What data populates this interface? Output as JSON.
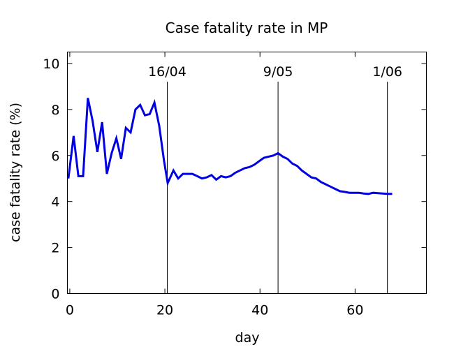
{
  "chart_data": {
    "type": "line",
    "title": "Case fatality rate in MP",
    "xlabel": "day",
    "ylabel": "case fatality rate (%)",
    "xlim": [
      -0.5,
      75
    ],
    "ylim": [
      0,
      10.5
    ],
    "xticks": [
      "0",
      "20",
      "40",
      "60"
    ],
    "yticks": [
      "0",
      "2",
      "4",
      "6",
      "8",
      "10"
    ],
    "grid": false,
    "line_color": "#0000e0",
    "vlines": [
      {
        "x": 20.5,
        "label": "16/04"
      },
      {
        "x": 43.8,
        "label": "9/05"
      },
      {
        "x": 66.8,
        "label": "1/06"
      }
    ],
    "series": [
      {
        "x": [
          -0.3,
          0.8,
          1.8,
          2.8,
          3.8,
          4.8,
          5.8,
          6.8,
          7.8,
          8.8,
          9.8,
          10.8,
          11.8,
          12.8,
          13.8,
          14.8,
          15.8,
          16.8,
          17.8,
          18.8,
          19.8,
          20.6,
          21.8,
          22.8,
          23.8,
          24.8,
          25.8,
          26.8,
          27.8,
          28.8,
          29.8,
          30.8,
          31.8,
          32.8,
          33.8,
          34.8,
          35.8,
          36.8,
          37.8,
          38.8,
          39.8,
          40.8,
          41.8,
          42.8,
          43.8,
          44.8,
          45.8,
          46.8,
          47.8,
          48.8,
          49.8,
          50.8,
          51.8,
          52.8,
          53.8,
          54.8,
          55.8,
          56.8,
          57.8,
          58.8,
          59.8,
          60.8,
          61.8,
          62.8,
          63.8,
          64.8,
          65.8,
          66.8,
          67.8
        ],
        "values": [
          5.0,
          6.85,
          5.1,
          5.1,
          8.5,
          7.5,
          6.15,
          7.45,
          5.2,
          6.1,
          6.75,
          5.85,
          7.2,
          7.0,
          8.0,
          8.2,
          7.75,
          7.8,
          8.3,
          7.3,
          5.8,
          4.8,
          5.35,
          5.0,
          5.2,
          5.2,
          5.2,
          5.1,
          5.0,
          5.05,
          5.15,
          4.95,
          5.1,
          5.05,
          5.1,
          5.25,
          5.35,
          5.45,
          5.5,
          5.6,
          5.75,
          5.9,
          5.95,
          6.0,
          6.1,
          5.95,
          5.85,
          5.65,
          5.55,
          5.35,
          5.2,
          5.05,
          5.0,
          4.85,
          4.75,
          4.65,
          4.55,
          4.45,
          4.42,
          4.38,
          4.38,
          4.38,
          4.35,
          4.33,
          4.38,
          4.36,
          4.35,
          4.33,
          4.33
        ]
      }
    ]
  }
}
